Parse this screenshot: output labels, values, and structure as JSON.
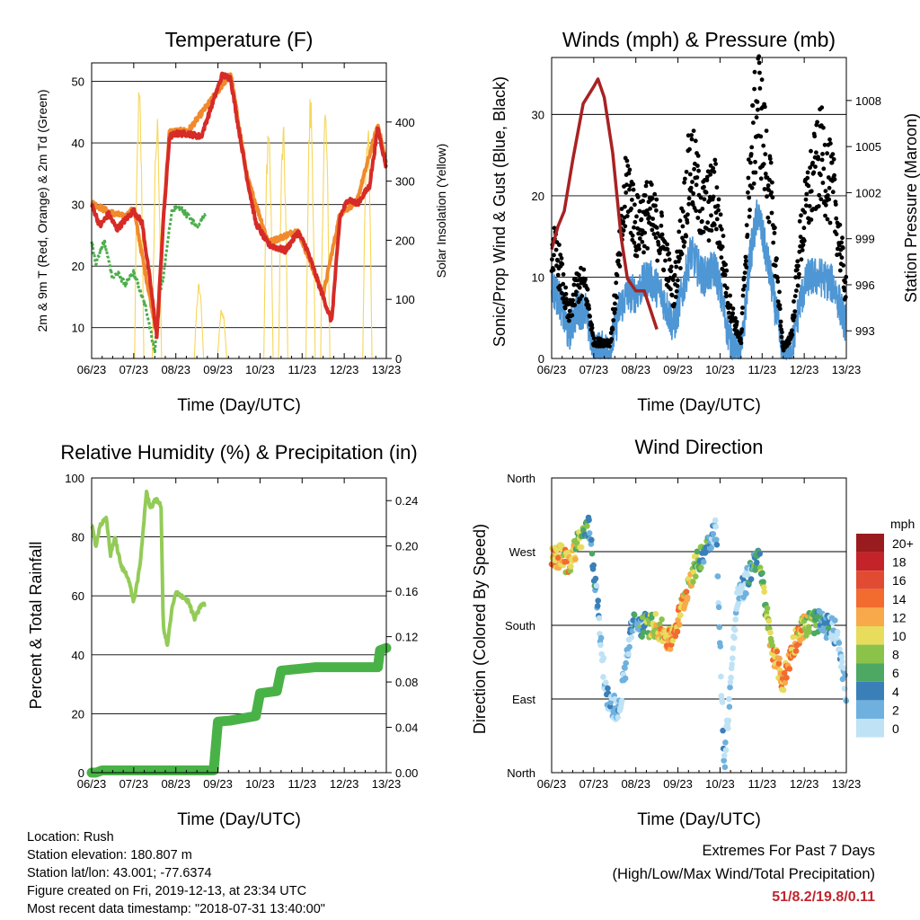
{
  "info": {
    "location": "Location: Rush",
    "elevation": "Station elevation: 180.807 m",
    "latlon": "Station lat/lon: 43.001; -77.6374",
    "created": "Figure created on Fri, 2019-12-13, at 23:34 UTC",
    "recent": "Most recent data timestamp: \"2018-07-31 13:40:00\""
  },
  "extremes": {
    "title": "Extremes For Past 7 Days",
    "subtitle": "(High/Low/Max Wind/Total Precipitation)",
    "values": "51/8.2/19.8/0.11"
  },
  "x_ticks": [
    "06/23",
    "07/23",
    "08/23",
    "09/23",
    "10/23",
    "11/23",
    "12/23",
    "13/23"
  ],
  "chart_data": [
    {
      "type": "line",
      "title": "Temperature (F)",
      "xlabel": "Time (Day/UTC)",
      "ylabel": "2m & 9m T (Red, Orange) & 2m Td (Green)",
      "ylabel_right": "Solar Insolation (Yellow)",
      "x_ticks": [
        "06/23",
        "07/23",
        "08/23",
        "09/23",
        "10/23",
        "11/23",
        "12/23",
        "13/23"
      ],
      "ylim": [
        5,
        53
      ],
      "yticks": [
        10,
        20,
        30,
        40,
        50
      ],
      "ylim_right": [
        0,
        500
      ],
      "yticks_right": [
        0,
        100,
        200,
        300,
        400
      ],
      "grid": true,
      "series": [
        {
          "name": "2m T",
          "color": "#d62b27",
          "x": [
            6.0,
            6.2,
            6.4,
            6.6,
            6.8,
            7.0,
            7.2,
            7.4,
            7.55,
            7.7,
            7.85,
            8.0,
            8.3,
            8.6,
            8.9,
            9.1,
            9.3,
            9.5,
            9.7,
            9.9,
            10.2,
            10.6,
            10.9,
            11.1,
            11.3,
            11.5,
            11.7,
            11.9,
            12.1,
            12.3,
            12.6,
            12.8,
            12.95,
            13.0
          ],
          "values": [
            30,
            26.5,
            28.5,
            26,
            27.5,
            29,
            27,
            17,
            8.5,
            27,
            41,
            41.5,
            41.5,
            41,
            47,
            51,
            50.5,
            42,
            34,
            27,
            23.5,
            22.5,
            25.5,
            23,
            19,
            15,
            11,
            28,
            31,
            30,
            33,
            42.5,
            37.5,
            36
          ]
        },
        {
          "name": "9m T",
          "color": "#f08a2c",
          "x": [
            6.0,
            6.4,
            6.8,
            7.0,
            7.3,
            7.55,
            7.7,
            7.85,
            8.3,
            8.9,
            9.3,
            9.7,
            10.2,
            10.9,
            11.5,
            11.9,
            12.3,
            12.8,
            13.0
          ],
          "values": [
            30.3,
            28.8,
            28,
            29.3,
            18,
            9,
            27.5,
            41.8,
            42,
            47.5,
            51.3,
            34.3,
            23.8,
            25.8,
            15.3,
            28.5,
            30.5,
            43,
            36.5
          ]
        },
        {
          "name": "2m Td",
          "color": "#4cae4c",
          "x": [
            6.0,
            6.1,
            6.3,
            6.5,
            6.6,
            6.8,
            7.0,
            7.15,
            7.3,
            7.5,
            7.6,
            7.7,
            7.9,
            8.1,
            8.3,
            8.5,
            8.7
          ],
          "values": [
            24,
            20.5,
            24,
            18,
            19,
            17,
            19,
            16,
            13,
            6,
            15,
            18,
            29,
            29.5,
            28,
            26.5,
            28.5
          ]
        }
      ],
      "insolation": {
        "name": "Solar Insolation",
        "color": "#f7d65a",
        "days": [
          {
            "x": 7.13,
            "peak": 470
          },
          {
            "x": 7.55,
            "peak": 420
          },
          {
            "x": 8.55,
            "peak": 130
          },
          {
            "x": 9.1,
            "peak": 90
          },
          {
            "x": 10.2,
            "peak": 420
          },
          {
            "x": 10.55,
            "peak": 400
          },
          {
            "x": 11.2,
            "peak": 460
          },
          {
            "x": 11.55,
            "peak": 440
          },
          {
            "x": 12.55,
            "peak": 420
          }
        ]
      }
    },
    {
      "type": "line",
      "title": "Winds (mph) & Pressure (mb)",
      "xlabel": "Time (Day/UTC)",
      "ylabel": "Sonic/Prop Wind & Gust (Blue, Black)",
      "ylabel_right": "Station Pressure (Maroon)",
      "x_ticks": [
        "06/23",
        "07/23",
        "08/23",
        "09/23",
        "10/23",
        "11/23",
        "12/23",
        "13/23"
      ],
      "ylim": [
        0,
        37
      ],
      "yticks": [
        0,
        10,
        20,
        30
      ],
      "ylim_right": [
        991.2,
        1010.8
      ],
      "yticks_right": [
        993,
        996,
        999,
        1002,
        1005,
        1008
      ],
      "grid": true,
      "series": [
        {
          "name": "Wind",
          "color": "#4e96d4",
          "x": [
            6.0,
            6.2,
            6.4,
            6.6,
            6.8,
            7.0,
            7.2,
            7.4,
            7.6,
            7.8,
            8.0,
            8.3,
            8.6,
            8.9,
            9.1,
            9.3,
            9.6,
            9.9,
            10.2,
            10.5,
            10.7,
            10.9,
            11.2,
            11.5,
            11.7,
            11.9,
            12.1,
            12.4,
            12.7,
            13.0
          ],
          "values": [
            9,
            7,
            3,
            6,
            6,
            1,
            1,
            1,
            6,
            8,
            8,
            10,
            8,
            4,
            8,
            13,
            10,
            11,
            3,
            0,
            12,
            18,
            10,
            0,
            1,
            7,
            10,
            10,
            9,
            4
          ]
        },
        {
          "name": "Gust",
          "color": "#000000",
          "x": [
            6.0,
            6.2,
            6.4,
            6.6,
            6.8,
            7.0,
            7.2,
            7.4,
            7.6,
            7.8,
            8.0,
            8.3,
            8.6,
            8.9,
            9.1,
            9.3,
            9.6,
            9.9,
            10.2,
            10.5,
            10.7,
            10.9,
            11.2,
            11.5,
            11.7,
            11.9,
            12.1,
            12.4,
            12.7,
            13.0
          ],
          "values": [
            14,
            11,
            5,
            9,
            9,
            2,
            2,
            2,
            12,
            22,
            16,
            18,
            15,
            8,
            16,
            24,
            18,
            20,
            7,
            2,
            22,
            32,
            20,
            1,
            3,
            14,
            20,
            25,
            20,
            8
          ]
        },
        {
          "name": "Pressure",
          "color": "#a82223",
          "axis": "right",
          "x": [
            6.0,
            6.15,
            6.3,
            6.5,
            6.75,
            7.0,
            7.1,
            7.25,
            7.45,
            7.65,
            7.8,
            8.0,
            8.2,
            8.5
          ],
          "values": [
            998.3,
            999.8,
            1000.8,
            1004.1,
            1007.8,
            1008.9,
            1009.4,
            1008.2,
            1004.6,
            999.1,
            996.4,
            995.6,
            995.6,
            993.1
          ]
        }
      ]
    },
    {
      "type": "line",
      "title": "Relative Humidity (%) & Precipitation (in)",
      "xlabel": "Time (Day/UTC)",
      "ylabel": "Percent & Total Rainfall",
      "x_ticks": [
        "06/23",
        "07/23",
        "08/23",
        "09/23",
        "10/23",
        "11/23",
        "12/23",
        "13/23"
      ],
      "ylim": [
        0,
        100
      ],
      "yticks": [
        0,
        20,
        40,
        60,
        80,
        100
      ],
      "ylim_right": [
        0,
        0.26
      ],
      "yticks_right": [
        "0.00",
        "0.04",
        "0.08",
        "0.12",
        "0.16",
        "0.20",
        "0.24"
      ],
      "grid": true,
      "series": [
        {
          "name": "Relative Humidity",
          "color": "#93cb57",
          "x": [
            6.0,
            6.1,
            6.2,
            6.35,
            6.45,
            6.55,
            6.7,
            6.85,
            7.0,
            7.15,
            7.3,
            7.4,
            7.55,
            7.65,
            7.7,
            7.8,
            7.9,
            8.0,
            8.15,
            8.3,
            8.45,
            8.6,
            8.7
          ],
          "values": [
            84,
            77,
            84,
            86,
            74,
            80,
            70,
            67,
            58,
            70,
            95,
            90,
            93,
            90,
            50,
            43,
            55,
            61,
            60,
            58,
            52,
            57,
            57
          ]
        },
        {
          "name": "Total Precipitation",
          "color": "#49b247",
          "axis": "right",
          "x": [
            6.0,
            6.1,
            6.25,
            8.9,
            9.0,
            9.3,
            9.6,
            9.9,
            10.0,
            10.4,
            10.5,
            11.3,
            12.0,
            12.8,
            12.85,
            13.0
          ],
          "values": [
            0.0,
            0.0,
            0.002,
            0.002,
            0.045,
            0.046,
            0.048,
            0.05,
            0.07,
            0.072,
            0.09,
            0.093,
            0.093,
            0.093,
            0.108,
            0.11
          ]
        }
      ]
    },
    {
      "type": "scatter",
      "title": "Wind Direction",
      "xlabel": "Time (Day/UTC)",
      "ylabel": "Direction (Colored By Speed)",
      "x_ticks": [
        "06/23",
        "07/23",
        "08/23",
        "09/23",
        "10/23",
        "11/23",
        "12/23",
        "13/23"
      ],
      "yticks": [
        "North",
        "East",
        "South",
        "West",
        "North"
      ],
      "ylim_deg": [
        0,
        360
      ],
      "grid": true,
      "legend": {
        "title": "mph",
        "labels": [
          "20+",
          "18",
          "16",
          "14",
          "12",
          "10",
          "8",
          "6",
          "4",
          "2",
          "0"
        ],
        "colors": [
          "#9a1b1e",
          "#c5232a",
          "#e14b32",
          "#f26b2f",
          "#f8a94a",
          "#e8dc5c",
          "#8bc34a",
          "#4ca862",
          "#3a7fb8",
          "#6fb1de",
          "#bfe2f5"
        ]
      },
      "series": [
        {
          "name": "wind direction",
          "x": [
            6.0,
            6.2,
            6.4,
            6.6,
            6.9,
            7.1,
            7.3,
            7.6,
            7.9,
            8.2,
            8.5,
            8.8,
            9.0,
            9.3,
            9.6,
            9.9,
            10.1,
            10.4,
            10.6,
            10.9,
            11.2,
            11.5,
            11.7,
            11.9,
            12.2,
            12.5,
            12.8,
            13.0
          ],
          "values": [
            260,
            265,
            255,
            280,
            300,
            200,
            90,
            75,
            180,
            180,
            180,
            160,
            185,
            240,
            270,
            300,
            10,
            210,
            230,
            270,
            160,
            110,
            150,
            175,
            185,
            180,
            170,
            95
          ]
        }
      ]
    }
  ]
}
